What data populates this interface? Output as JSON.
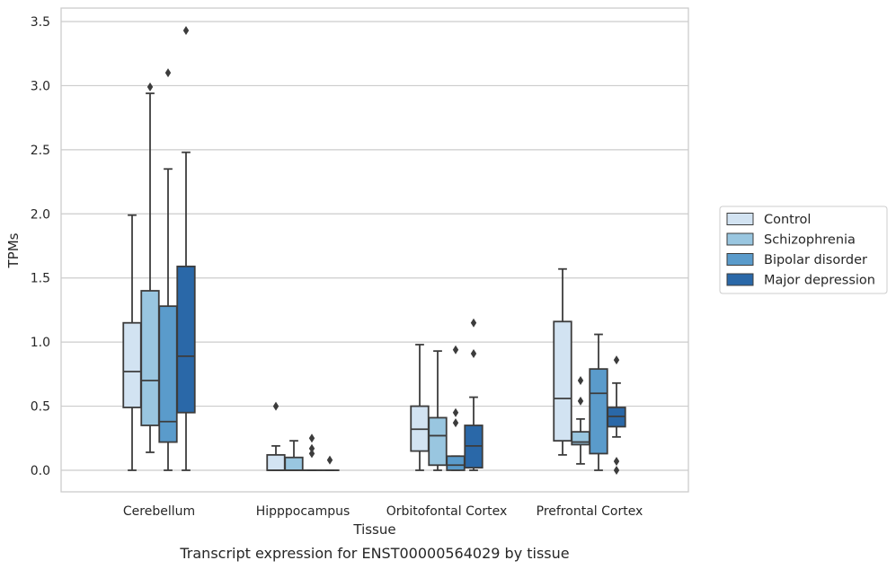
{
  "caption": "Transcript expression for ENST00000564029 by tissue",
  "chart_data": {
    "type": "box",
    "xlabel": "Tissue",
    "ylabel": "TPMs",
    "ylim": [
      -0.17,
      3.6
    ],
    "yticks": [
      "0.0",
      "0.5",
      "1.0",
      "1.5",
      "2.0",
      "2.5",
      "3.0",
      "3.5"
    ],
    "categories": [
      "Cerebellum",
      "Hipppocampus",
      "Orbitofontal Cortex",
      "Prefrontal Cortex"
    ],
    "grid": "horizontal",
    "legend_position": "right",
    "series": [
      {
        "name": "Control",
        "color": "#d2e3f2",
        "boxes": [
          {
            "whisker_low": 0.0,
            "q1": 0.49,
            "median": 0.77,
            "q3": 1.15,
            "whisker_high": 1.99,
            "outliers": []
          },
          {
            "whisker_low": 0.0,
            "q1": 0.0,
            "median": 0.0,
            "q3": 0.12,
            "whisker_high": 0.19,
            "outliers": [
              0.5
            ]
          },
          {
            "whisker_low": 0.0,
            "q1": 0.15,
            "median": 0.32,
            "q3": 0.5,
            "whisker_high": 0.98,
            "outliers": []
          },
          {
            "whisker_low": 0.12,
            "q1": 0.23,
            "median": 0.56,
            "q3": 1.16,
            "whisker_high": 1.57,
            "outliers": []
          }
        ]
      },
      {
        "name": "Schizophrenia",
        "color": "#99c6e0",
        "boxes": [
          {
            "whisker_low": 0.14,
            "q1": 0.35,
            "median": 0.7,
            "q3": 1.4,
            "whisker_high": 2.94,
            "outliers": [
              2.99
            ]
          },
          {
            "whisker_low": 0.0,
            "q1": 0.0,
            "median": 0.0,
            "q3": 0.1,
            "whisker_high": 0.23,
            "outliers": []
          },
          {
            "whisker_low": 0.0,
            "q1": 0.04,
            "median": 0.27,
            "q3": 0.41,
            "whisker_high": 0.93,
            "outliers": []
          },
          {
            "whisker_low": 0.05,
            "q1": 0.2,
            "median": 0.22,
            "q3": 0.3,
            "whisker_high": 0.4,
            "outliers": [
              0.54,
              0.7
            ]
          }
        ]
      },
      {
        "name": "Bipolar disorder",
        "color": "#5a9bcb",
        "boxes": [
          {
            "whisker_low": 0.0,
            "q1": 0.22,
            "median": 0.38,
            "q3": 1.28,
            "whisker_high": 2.35,
            "outliers": [
              3.1
            ]
          },
          {
            "whisker_low": 0.0,
            "q1": 0.0,
            "median": 0.0,
            "q3": 0.0,
            "whisker_high": 0.0,
            "outliers": [
              0.13,
              0.17,
              0.25
            ]
          },
          {
            "whisker_low": 0.0,
            "q1": 0.0,
            "median": 0.04,
            "q3": 0.11,
            "whisker_high": 0.11,
            "outliers": [
              0.37,
              0.45,
              0.94
            ]
          },
          {
            "whisker_low": 0.0,
            "q1": 0.13,
            "median": 0.6,
            "q3": 0.79,
            "whisker_high": 1.06,
            "outliers": []
          }
        ]
      },
      {
        "name": "Major depression",
        "color": "#2a68a8",
        "boxes": [
          {
            "whisker_low": 0.0,
            "q1": 0.45,
            "median": 0.89,
            "q3": 1.59,
            "whisker_high": 2.48,
            "outliers": [
              3.43
            ]
          },
          {
            "whisker_low": 0.0,
            "q1": 0.0,
            "median": 0.0,
            "q3": 0.0,
            "whisker_high": 0.0,
            "outliers": [
              0.08
            ]
          },
          {
            "whisker_low": 0.0,
            "q1": 0.02,
            "median": 0.19,
            "q3": 0.35,
            "whisker_high": 0.57,
            "outliers": [
              0.91,
              1.15
            ]
          },
          {
            "whisker_low": 0.26,
            "q1": 0.34,
            "median": 0.42,
            "q3": 0.49,
            "whisker_high": 0.68,
            "outliers": [
              0.0,
              0.07,
              0.86
            ]
          }
        ]
      }
    ]
  }
}
